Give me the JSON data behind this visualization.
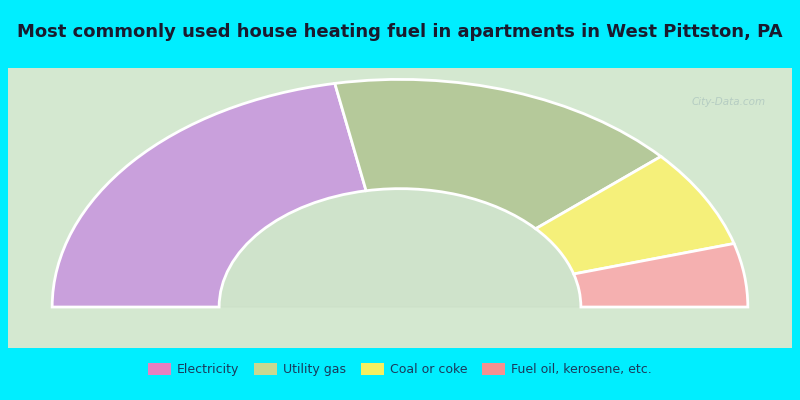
{
  "title": "Most commonly used house heating fuel in apartments in West Pittston, PA",
  "title_fontsize": 13,
  "background_color": "#00EEFF",
  "chart_bg": "#cce8cc",
  "segments": [
    {
      "label": "Electricity",
      "value": 44,
      "color": "#c9a0dc"
    },
    {
      "label": "Utility gas",
      "value": 33,
      "color": "#b5c99a"
    },
    {
      "label": "Coal or coke",
      "value": 14,
      "color": "#f5f07a"
    },
    {
      "label": "Fuel oil, kerosene, etc.",
      "value": 9,
      "color": "#f5b0b0"
    }
  ],
  "legend_marker_colors": [
    "#e880c0",
    "#c8d890",
    "#f5f060",
    "#f59090"
  ],
  "figsize": [
    8.0,
    4.0
  ],
  "dpi": 100
}
